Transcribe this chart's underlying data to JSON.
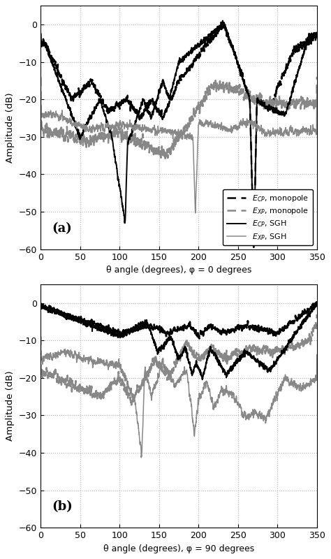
{
  "title_a": "(a)",
  "title_b": "(b)",
  "xlabel_a": "θ angle (degrees), φ = 0 degrees",
  "xlabel_b": "θ angle (degrees), φ = 90 degrees",
  "ylabel": "Amplitude (dB)",
  "xlim": [
    0,
    350
  ],
  "ylim": [
    -60,
    5
  ],
  "yticks": [
    0,
    -10,
    -20,
    -30,
    -40,
    -50,
    -60
  ],
  "xticks": [
    0,
    50,
    100,
    150,
    200,
    250,
    300,
    350
  ],
  "background_color": "#ffffff",
  "grid_color": "#b0b0b0",
  "ecp_mono_color": "#000000",
  "exp_mono_color": "#888888",
  "ecp_sgh_color": "#000000",
  "exp_sgh_color": "#888888"
}
